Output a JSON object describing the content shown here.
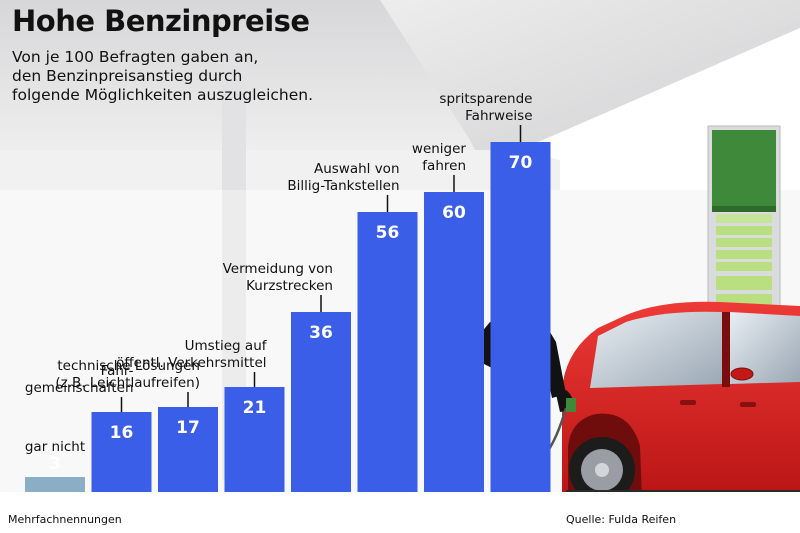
{
  "header": {
    "title": "Hohe Benzinpreise",
    "subtitle_lines": [
      "Von je 100 Befragten gaben an,",
      "den Benzinpreisanstieg durch",
      "folgende Möglichkeiten auszugleichen."
    ]
  },
  "footer": {
    "note": "Mehrfachnennungen",
    "source": "Quelle: Fulda Reifen"
  },
  "colors": {
    "bar": "#3a5ee8",
    "bar_small": "#8aaec6",
    "pump_green": "#3f8a3a",
    "car_red": "#d81e1e"
  },
  "chart_data": {
    "type": "bar",
    "title": "Hohe Benzinpreise",
    "xlabel": "",
    "ylabel": "",
    "ylim": [
      0,
      100
    ],
    "grid": false,
    "categories": [
      [
        "gar nicht"
      ],
      [
        "Fahr-",
        "gemeinschaften"
      ],
      [
        "technische Lösungen",
        "(z.B. Leichtlaufreifen)"
      ],
      [
        "Umstieg auf",
        "öffentl. Verkehrsmittel"
      ],
      [
        "Vermeidung von",
        "Kurzstrecken"
      ],
      [
        "Auswahl von",
        "Billig-Tankstellen"
      ],
      [
        "weniger",
        "fahren"
      ],
      [
        "spritsparende",
        "Fahrweise"
      ]
    ],
    "values": [
      3,
      16,
      17,
      21,
      36,
      56,
      60,
      70
    ]
  }
}
